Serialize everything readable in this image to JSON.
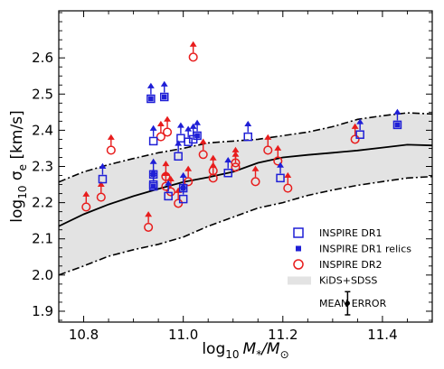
{
  "chart_data": {
    "type": "scatter",
    "xlabel_base": "log",
    "xlabel_sub": "10",
    "xlabel_m": "M",
    "xlabel_m_sub": "*",
    "xlabel_slash": "/M",
    "xlabel_sun_sub": "⊙",
    "ylabel_base": "log",
    "ylabel_sub": "10",
    "ylabel_sigma": " σ",
    "ylabel_sigma_sub": "e",
    "ylabel_unit": " [km/s]",
    "xlim": [
      10.75,
      11.5
    ],
    "ylim": [
      1.87,
      2.73
    ],
    "x_ticks": [
      10.8,
      11.0,
      11.2,
      11.4
    ],
    "x_tick_labels": [
      "10.8",
      "11.0",
      "11.2",
      "11.4"
    ],
    "y_ticks": [
      1.9,
      2.0,
      2.1,
      2.2,
      2.3,
      2.4,
      2.5,
      2.6
    ],
    "y_tick_labels": [
      "1.9",
      "2.0",
      "2.1",
      "2.2",
      "2.3",
      "2.4",
      "2.5",
      "2.6"
    ],
    "grid": false,
    "legend_position": "lower-right",
    "legend": [
      {
        "key": "dr1",
        "label": "INSPIRE DR1"
      },
      {
        "key": "relics",
        "label": "INSPIRE DR1 relics"
      },
      {
        "key": "dr2",
        "label": "INSPIRE DR2"
      },
      {
        "key": "band",
        "label": "KiDS+SDSS"
      },
      {
        "key": "err",
        "label": "MEAN ERROR"
      }
    ],
    "colors": {
      "dr1": "#1f1fd6",
      "dr2": "#e81d1d",
      "band": "#e3e3e3",
      "line": "#000000"
    },
    "median_line": {
      "x": [
        10.75,
        10.8,
        10.85,
        10.9,
        10.95,
        11.0,
        11.05,
        11.1,
        11.15,
        11.2,
        11.25,
        11.3,
        11.35,
        11.4,
        11.45,
        11.5
      ],
      "y": [
        2.135,
        2.168,
        2.195,
        2.218,
        2.238,
        2.257,
        2.27,
        2.285,
        2.31,
        2.325,
        2.332,
        2.338,
        2.344,
        2.352,
        2.36,
        2.358
      ]
    },
    "upper_line": {
      "x": [
        10.75,
        10.8,
        10.85,
        10.9,
        10.95,
        11.0,
        11.05,
        11.1,
        11.15,
        11.2,
        11.25,
        11.3,
        11.35,
        11.4,
        11.45,
        11.5
      ],
      "y": [
        2.257,
        2.285,
        2.305,
        2.322,
        2.338,
        2.35,
        2.365,
        2.37,
        2.375,
        2.385,
        2.395,
        2.41,
        2.43,
        2.44,
        2.448,
        2.445
      ]
    },
    "lower_line": {
      "x": [
        10.75,
        10.8,
        10.85,
        10.9,
        10.95,
        11.0,
        11.05,
        11.1,
        11.15,
        11.2,
        11.25,
        11.3,
        11.35,
        11.4,
        11.45,
        11.5
      ],
      "y": [
        2.0,
        2.025,
        2.052,
        2.07,
        2.085,
        2.105,
        2.135,
        2.16,
        2.185,
        2.2,
        2.22,
        2.235,
        2.248,
        2.258,
        2.268,
        2.272
      ]
    },
    "inspire_dr1": [
      {
        "x": 10.838,
        "y": 2.265
      },
      {
        "x": 10.935,
        "y": 2.487
      },
      {
        "x": 10.94,
        "y": 2.37
      },
      {
        "x": 10.94,
        "y": 2.278
      },
      {
        "x": 10.94,
        "y": 2.25
      },
      {
        "x": 10.94,
        "y": 2.245
      },
      {
        "x": 10.962,
        "y": 2.492
      },
      {
        "x": 10.97,
        "y": 2.218
      },
      {
        "x": 10.99,
        "y": 2.328
      },
      {
        "x": 10.995,
        "y": 2.378
      },
      {
        "x": 11.0,
        "y": 2.24
      },
      {
        "x": 11.0,
        "y": 2.21
      },
      {
        "x": 11.01,
        "y": 2.368
      },
      {
        "x": 11.02,
        "y": 2.375
      },
      {
        "x": 11.028,
        "y": 2.385
      },
      {
        "x": 11.09,
        "y": 2.282
      },
      {
        "x": 11.13,
        "y": 2.382
      },
      {
        "x": 11.195,
        "y": 2.268
      },
      {
        "x": 11.355,
        "y": 2.388
      },
      {
        "x": 11.43,
        "y": 2.415
      }
    ],
    "inspire_dr1_relics": [
      {
        "x": 10.935,
        "y": 2.487
      },
      {
        "x": 10.94,
        "y": 2.278
      },
      {
        "x": 10.94,
        "y": 2.245
      },
      {
        "x": 10.962,
        "y": 2.492
      },
      {
        "x": 11.0,
        "y": 2.24
      },
      {
        "x": 11.028,
        "y": 2.385
      },
      {
        "x": 11.43,
        "y": 2.415
      }
    ],
    "inspire_dr2": [
      {
        "x": 10.805,
        "y": 2.188
      },
      {
        "x": 10.835,
        "y": 2.215
      },
      {
        "x": 10.855,
        "y": 2.345
      },
      {
        "x": 10.93,
        "y": 2.132
      },
      {
        "x": 10.955,
        "y": 2.382
      },
      {
        "x": 10.965,
        "y": 2.272
      },
      {
        "x": 10.965,
        "y": 2.245
      },
      {
        "x": 10.968,
        "y": 2.395
      },
      {
        "x": 10.975,
        "y": 2.23
      },
      {
        "x": 10.99,
        "y": 2.198
      },
      {
        "x": 11.01,
        "y": 2.258
      },
      {
        "x": 11.02,
        "y": 2.602
      },
      {
        "x": 11.04,
        "y": 2.333
      },
      {
        "x": 11.06,
        "y": 2.268
      },
      {
        "x": 11.06,
        "y": 2.288
      },
      {
        "x": 11.105,
        "y": 2.298
      },
      {
        "x": 11.105,
        "y": 2.31
      },
      {
        "x": 11.145,
        "y": 2.258
      },
      {
        "x": 11.17,
        "y": 2.345
      },
      {
        "x": 11.19,
        "y": 2.315
      },
      {
        "x": 11.21,
        "y": 2.24
      },
      {
        "x": 11.345,
        "y": 2.375
      }
    ],
    "mean_error": {
      "x": 11.33,
      "y": 1.922,
      "err": 0.032
    }
  }
}
